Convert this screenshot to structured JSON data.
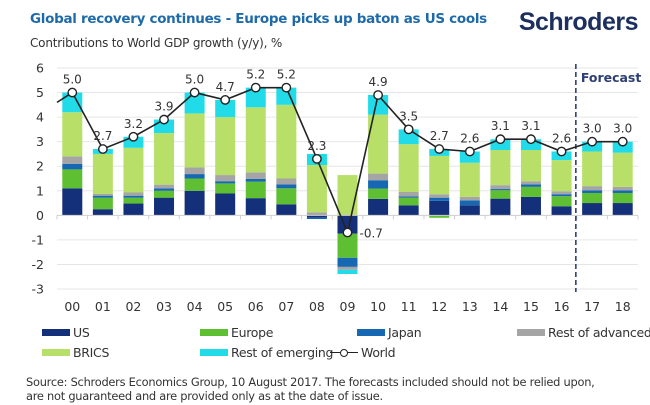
{
  "header": {
    "title": "Global recovery continues - Europe picks up baton as US cools",
    "subtitle": "Contributions to World GDP growth (y/y), %",
    "logo": "Schroders"
  },
  "footer": {
    "source_line1": "Source: Schroders Economics Group, 10 August 2017. The forecasts included should not be relied upon,",
    "source_line2": "are not guaranteed and are provided only as at the date of issue."
  },
  "chart_data": {
    "type": "bar",
    "stacked": true,
    "title": "Global recovery continues - Europe picks up baton as US cools",
    "subtitle": "Contributions to World GDP growth (y/y), %",
    "xlabel": "",
    "ylabel": "",
    "ylim": [
      -3,
      6
    ],
    "yticks": [
      6,
      5,
      4,
      3,
      2,
      1,
      0,
      -1,
      -2,
      -3
    ],
    "grid": true,
    "legend_position": "bottom",
    "categories": [
      "00",
      "01",
      "02",
      "03",
      "04",
      "05",
      "06",
      "07",
      "08",
      "09",
      "10",
      "11",
      "12",
      "13",
      "14",
      "15",
      "16",
      "17",
      "18"
    ],
    "annotation": {
      "text": "Forecast",
      "starts_at": "17"
    },
    "series": [
      {
        "name": "US",
        "color": "#14307a",
        "values": [
          1.1,
          0.25,
          0.48,
          0.72,
          1.0,
          0.89,
          0.7,
          0.45,
          -0.1,
          -0.75,
          0.67,
          0.41,
          0.59,
          0.41,
          0.68,
          0.75,
          0.37,
          0.5,
          0.5
        ]
      },
      {
        "name": "Europe",
        "color": "#5fbf33",
        "values": [
          0.77,
          0.47,
          0.24,
          0.28,
          0.5,
          0.41,
          0.67,
          0.65,
          0.0,
          -0.98,
          0.42,
          0.31,
          -0.1,
          0.0,
          0.34,
          0.41,
          0.41,
          0.41,
          0.41
        ]
      },
      {
        "name": "Japan",
        "color": "#1768b3",
        "values": [
          0.23,
          0.08,
          0.08,
          0.1,
          0.18,
          0.09,
          0.11,
          0.16,
          -0.05,
          -0.37,
          0.34,
          0.05,
          0.13,
          0.2,
          0.05,
          0.1,
          0.08,
          0.11,
          0.11
        ]
      },
      {
        "name": "Rest of advanced",
        "color": "#a5a5a5",
        "values": [
          0.3,
          0.07,
          0.13,
          0.15,
          0.27,
          0.25,
          0.27,
          0.24,
          0.12,
          -0.12,
          0.27,
          0.18,
          0.14,
          0.14,
          0.16,
          0.13,
          0.12,
          0.17,
          0.14
        ]
      },
      {
        "name": "BRICS",
        "color": "#b8e068",
        "values": [
          1.8,
          1.63,
          1.82,
          2.1,
          2.2,
          2.36,
          2.65,
          3.0,
          1.93,
          1.64,
          2.4,
          1.95,
          1.56,
          1.39,
          1.43,
          1.27,
          1.27,
          1.41,
          1.39
        ]
      },
      {
        "name": "Rest of emerging",
        "color": "#22dbe9",
        "values": [
          0.8,
          0.2,
          0.45,
          0.55,
          0.85,
          0.7,
          0.8,
          0.7,
          0.45,
          -0.17,
          0.8,
          0.6,
          0.28,
          0.46,
          0.44,
          0.44,
          0.35,
          0.4,
          0.45
        ]
      }
    ],
    "line": {
      "name": "World",
      "color": "#222222",
      "values": [
        5.0,
        2.7,
        3.2,
        3.9,
        5.0,
        4.7,
        5.2,
        5.2,
        2.3,
        -0.7,
        4.9,
        3.5,
        2.7,
        2.6,
        3.1,
        3.1,
        2.6,
        3.0,
        3.0
      ],
      "labels": [
        "5.0",
        "2.7",
        "3.2",
        "3.9",
        "5.0",
        "4.7",
        "5.2",
        "5.2",
        "2.3",
        "-0.7",
        "4.9",
        "3.5",
        "2.7",
        "2.6",
        "3.1",
        "3.1",
        "2.6",
        "3.0",
        "3.0"
      ],
      "prior_value": 4.6
    }
  },
  "legend": [
    {
      "label": "US",
      "type": "bar",
      "color": "#14307a"
    },
    {
      "label": "Europe",
      "type": "bar",
      "color": "#5fbf33"
    },
    {
      "label": "Japan",
      "type": "bar",
      "color": "#1768b3"
    },
    {
      "label": "Rest of advanced",
      "type": "bar",
      "color": "#a5a5a5"
    },
    {
      "label": "BRICS",
      "type": "bar",
      "color": "#b8e068"
    },
    {
      "label": "Rest of emerging",
      "type": "bar",
      "color": "#22dbe9"
    },
    {
      "label": "World",
      "type": "line",
      "color": "#222222"
    }
  ]
}
